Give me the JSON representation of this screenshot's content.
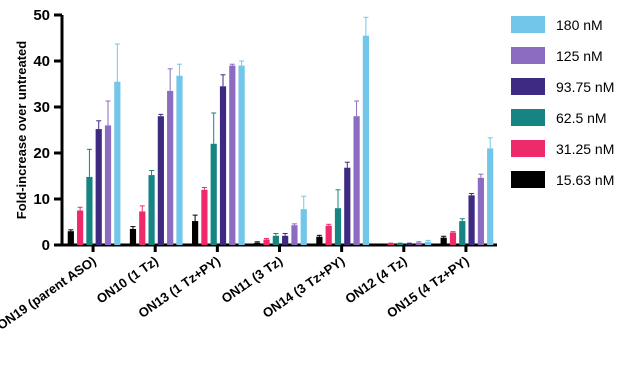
{
  "chart_data": {
    "type": "bar",
    "ylabel": "Fold-increase over untreated",
    "xlabel": "",
    "ylim": [
      0,
      50
    ],
    "yticks": [
      0,
      10,
      20,
      30,
      40,
      50
    ],
    "categories": [
      "ON19 (parent ASO)",
      "ON10 (1 Tz)",
      "ON13 (1 Tz+PY)",
      "ON11 (3 Tz)",
      "ON14 (3 Tz+PY)",
      "ON12 (4 Tz)",
      "ON15 (4 Tz+PY)"
    ],
    "series": [
      {
        "name": "15.63 nM",
        "color": "#000000",
        "values": [
          3.0,
          3.5,
          5.2,
          0.5,
          1.8,
          0.1,
          1.6
        ],
        "errors": [
          0.3,
          0.5,
          1.3,
          0.2,
          0.3,
          0.05,
          0.3
        ]
      },
      {
        "name": "31.25 nM",
        "color": "#ee2a6b",
        "values": [
          7.5,
          7.3,
          12.0,
          1.2,
          4.2,
          0.3,
          2.7
        ],
        "errors": [
          0.7,
          1.2,
          0.5,
          0.2,
          0.3,
          0.1,
          0.2
        ]
      },
      {
        "name": "62.5 nM",
        "color": "#158482",
        "values": [
          14.8,
          15.2,
          22.0,
          2.0,
          8.0,
          0.3,
          5.2
        ],
        "errors": [
          6.0,
          1.0,
          6.7,
          0.5,
          4.0,
          0.1,
          0.5
        ]
      },
      {
        "name": "93.75 nM",
        "color": "#3f2a82",
        "values": [
          25.2,
          28.0,
          34.5,
          2.0,
          16.8,
          0.3,
          10.8
        ],
        "errors": [
          1.8,
          0.4,
          2.5,
          0.5,
          1.2,
          0.1,
          0.4
        ]
      },
      {
        "name": "125 nM",
        "color": "#8c6cc0",
        "values": [
          26.0,
          33.5,
          39.0,
          4.3,
          28.0,
          0.5,
          14.6
        ],
        "errors": [
          5.3,
          4.8,
          0.3,
          0.3,
          3.3,
          0.2,
          0.8
        ]
      },
      {
        "name": "180 nM",
        "color": "#72c6ea",
        "values": [
          35.5,
          36.8,
          39.0,
          7.8,
          45.5,
          0.7,
          21.0
        ],
        "errors": [
          8.2,
          2.5,
          1.0,
          2.8,
          4.0,
          0.3,
          2.3
        ]
      }
    ],
    "legend_position": "right"
  }
}
